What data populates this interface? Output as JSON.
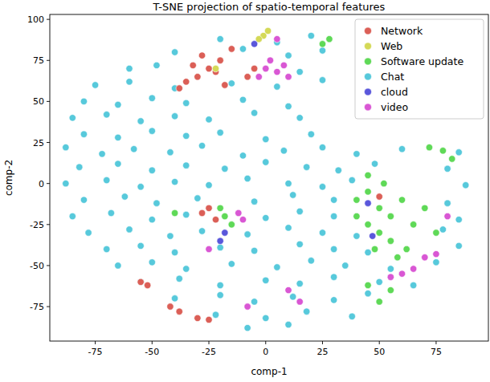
{
  "chart_data": {
    "type": "scatter",
    "title": "T-SNE projection of spatio-temporal features",
    "x_label": "comp-1",
    "y_label": "comp-2",
    "xlim": [
      -95,
      98
    ],
    "ylim": [
      -96,
      103
    ],
    "xticks": [
      -75,
      -50,
      -25,
      0,
      25,
      50,
      75
    ],
    "yticks": [
      -75,
      -50,
      -25,
      0,
      25,
      50,
      75,
      100
    ],
    "grid": false,
    "legend": "upper right",
    "series": [
      {
        "name": "Chat",
        "color": "#57c9db",
        "x": [
          -20,
          5,
          20,
          -40,
          -10,
          10,
          25,
          -60,
          -48,
          15,
          -75,
          -60,
          -40,
          -15,
          5,
          25,
          -80,
          -65,
          -50,
          -35,
          -10,
          10,
          -85,
          -70,
          -55,
          -40,
          -25,
          -5,
          15,
          -80,
          -65,
          -50,
          -35,
          -20,
          0,
          20,
          -88,
          -72,
          -58,
          -42,
          -28,
          -10,
          8,
          25,
          40,
          60,
          85,
          -82,
          -65,
          -50,
          -35,
          -18,
          0,
          18,
          32,
          48,
          80,
          -88,
          -70,
          -55,
          -40,
          -25,
          -8,
          10,
          25,
          38,
          88,
          -80,
          -62,
          -48,
          -30,
          -5,
          12,
          30,
          80,
          -85,
          -68,
          -50,
          -35,
          0,
          15,
          30,
          85,
          -78,
          -60,
          -42,
          -28,
          -8,
          10,
          25,
          40,
          78,
          -70,
          -55,
          -40,
          -20,
          -5,
          15,
          30,
          45,
          85,
          -65,
          -50,
          -35,
          -15,
          5,
          20,
          35,
          55,
          75,
          -55,
          -38,
          -20,
          0,
          15,
          30,
          50,
          65,
          -40,
          -20,
          -5,
          12,
          30,
          45,
          -22,
          0,
          18,
          38,
          -8,
          10
        ],
        "values": [
          88,
          86,
          90,
          80,
          82,
          78,
          81,
          70,
          72,
          68,
          60,
          62,
          58,
          61,
          59,
          63,
          50,
          48,
          52,
          49,
          51,
          47,
          40,
          42,
          38,
          41,
          39,
          43,
          40,
          30,
          28,
          32,
          29,
          31,
          27,
          30,
          22,
          18,
          21,
          19,
          23,
          17,
          20,
          22,
          18,
          21,
          19,
          10,
          12,
          8,
          11,
          9,
          13,
          10,
          8,
          12,
          9,
          0,
          2,
          -2,
          1,
          -1,
          3,
          0,
          -2,
          2,
          -1,
          -10,
          -8,
          -12,
          -9,
          -11,
          -7,
          -10,
          -12,
          -20,
          -18,
          -22,
          -19,
          -21,
          -17,
          -20,
          -22,
          -30,
          -28,
          -32,
          -29,
          -31,
          -27,
          -30,
          -32,
          -28,
          -40,
          -38,
          -42,
          -39,
          -41,
          -37,
          -40,
          -42,
          -38,
          -50,
          -48,
          -52,
          -49,
          -51,
          -47,
          -50,
          -52,
          -48,
          -60,
          -58,
          -62,
          -59,
          -61,
          -57,
          -60,
          -62,
          -70,
          -68,
          -72,
          -69,
          -71,
          -67,
          -80,
          -82,
          -78,
          -81,
          -88,
          -86
        ]
      },
      {
        "name": "Network",
        "color": "#db5f57",
        "x": [
          -35,
          -30,
          -25,
          -20,
          -28,
          -15,
          -38,
          -22,
          -32,
          -18,
          -8,
          -5,
          -28,
          -22,
          -25,
          -55,
          -52,
          -42,
          -38,
          -30,
          -25,
          50
        ],
        "values": [
          62,
          65,
          70,
          75,
          78,
          82,
          58,
          68,
          72,
          60,
          65,
          70,
          -18,
          -22,
          -15,
          -60,
          -62,
          -75,
          -78,
          -82,
          -83,
          -8
        ]
      },
      {
        "name": "Web",
        "color": "#d4d957",
        "x": [
          -1,
          -3,
          -22,
          1
        ],
        "values": [
          90,
          88,
          70,
          93
        ]
      },
      {
        "name": "Software update",
        "color": "#5fd957",
        "x": [
          40,
          45,
          50,
          55,
          60,
          65,
          45,
          50,
          55,
          62,
          70,
          40,
          48,
          58,
          45,
          52,
          72,
          78,
          82,
          55,
          50,
          45,
          -18,
          -15,
          -20,
          -40,
          75,
          28,
          25
        ],
        "values": [
          -10,
          -5,
          -15,
          -20,
          -10,
          -25,
          -25,
          -30,
          -35,
          -40,
          -15,
          -20,
          -40,
          -45,
          5,
          0,
          22,
          20,
          15,
          -65,
          -72,
          -62,
          -20,
          -25,
          -15,
          -18,
          -30,
          88,
          85
        ]
      },
      {
        "name": "cloud",
        "color": "#5a57db",
        "x": [
          -5,
          -20,
          -18,
          47,
          45
        ],
        "values": [
          85,
          -35,
          -30,
          -32,
          -12
        ]
      },
      {
        "name": "video",
        "color": "#d957d4",
        "x": [
          0,
          5,
          8,
          -3,
          10,
          2,
          5,
          -12,
          -10,
          70,
          75,
          60,
          65,
          55,
          80,
          10,
          15,
          -8,
          -25
        ],
        "values": [
          70,
          68,
          72,
          65,
          65,
          75,
          88,
          -18,
          -22,
          -45,
          -43,
          -55,
          -52,
          -57,
          -20,
          -65,
          -72,
          -75,
          -40
        ]
      }
    ]
  }
}
